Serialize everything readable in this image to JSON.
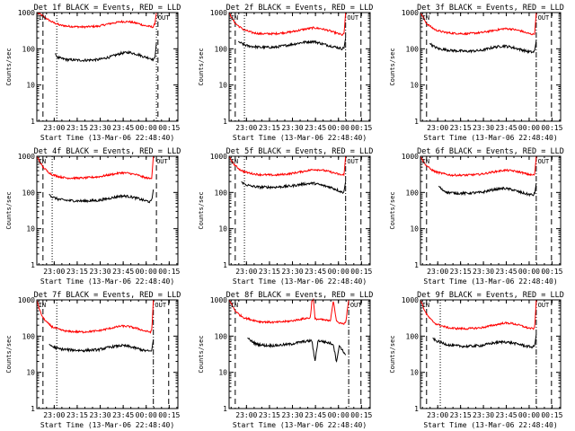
{
  "common": {
    "ylabel": "Counts/sec",
    "xlabel": "Start Time (13-Mar-06 22:48:40)",
    "yticks": [
      "1",
      "10",
      "100",
      "1000"
    ],
    "xticks": [
      "23:00",
      "23:15",
      "23:30",
      "23:45",
      "00:00",
      "00:15"
    ],
    "in_label": "IN",
    "out_label": "OUT"
  },
  "colors": {
    "events": "#000000",
    "lld": "#ff0000",
    "axis": "#000000",
    "bg": "#ffffff"
  },
  "chart_data": [
    {
      "type": "line",
      "title": "Det 1f BLACK = Events, RED = LLD",
      "yscale": "log",
      "ylim": [
        1,
        1000
      ],
      "xlim_minutes_from_start": [
        0,
        92
      ],
      "series": [
        {
          "name": "Events",
          "color": "black",
          "start": 12,
          "end": 78,
          "x": [
            12,
            13,
            15,
            20,
            30,
            40,
            48,
            55,
            60,
            66,
            70,
            74,
            76,
            77,
            78
          ],
          "y": [
            75,
            60,
            55,
            50,
            48,
            50,
            60,
            75,
            80,
            70,
            60,
            55,
            50,
            55,
            150
          ]
        },
        {
          "name": "LLD",
          "color": "red",
          "start": 0,
          "end": 78,
          "x": [
            0,
            2,
            4,
            7,
            10,
            15,
            20,
            30,
            40,
            48,
            55,
            60,
            66,
            70,
            74,
            76,
            77,
            78
          ],
          "y": [
            1000,
            900,
            800,
            650,
            550,
            450,
            420,
            400,
            420,
            500,
            560,
            560,
            500,
            440,
            410,
            400,
            500,
            1000
          ]
        }
      ],
      "markers": {
        "dashed": [
          4,
          79
        ],
        "dotted": [
          13,
          78
        ],
        "dashdot": [],
        "in_x": 1,
        "out_x": 79
      }
    },
    {
      "type": "line",
      "title": "Det 2f BLACK = Events, RED = LLD",
      "yscale": "log",
      "ylim": [
        1,
        1000
      ],
      "xlim_minutes_from_start": [
        0,
        92
      ],
      "series": [
        {
          "name": "Events",
          "color": "black",
          "start": 6,
          "end": 76,
          "x": [
            6,
            8,
            12,
            20,
            30,
            40,
            48,
            55,
            60,
            66,
            70,
            74,
            75,
            76
          ],
          "y": [
            160,
            140,
            120,
            110,
            110,
            130,
            150,
            160,
            140,
            120,
            110,
            100,
            110,
            200
          ]
        },
        {
          "name": "LLD",
          "color": "red",
          "start": 0,
          "end": 76,
          "x": [
            0,
            2,
            4,
            7,
            10,
            15,
            20,
            30,
            40,
            48,
            55,
            60,
            66,
            70,
            74,
            75,
            76
          ],
          "y": [
            1000,
            700,
            500,
            400,
            330,
            280,
            260,
            260,
            290,
            340,
            380,
            360,
            310,
            270,
            240,
            260,
            1000
          ]
        }
      ],
      "markers": {
        "dashed": [
          4,
          86
        ],
        "dotted": [
          10
        ],
        "dashdot": [
          76
        ],
        "in_x": 1,
        "out_x": 77
      }
    },
    {
      "type": "line",
      "title": "Det 3f BLACK = Events, RED = LLD",
      "yscale": "log",
      "ylim": [
        1,
        1000
      ],
      "xlim_minutes_from_start": [
        0,
        92
      ],
      "series": [
        {
          "name": "Events",
          "color": "black",
          "start": 6,
          "end": 76,
          "x": [
            6,
            8,
            12,
            20,
            30,
            40,
            48,
            55,
            60,
            66,
            70,
            74,
            75,
            76
          ],
          "y": [
            140,
            120,
            100,
            90,
            85,
            90,
            110,
            120,
            110,
            95,
            85,
            80,
            90,
            170
          ]
        },
        {
          "name": "LLD",
          "color": "red",
          "start": 0,
          "end": 76,
          "x": [
            0,
            2,
            4,
            7,
            10,
            15,
            20,
            30,
            40,
            48,
            55,
            60,
            66,
            70,
            74,
            75,
            76
          ],
          "y": [
            1000,
            700,
            500,
            400,
            330,
            290,
            270,
            260,
            280,
            320,
            360,
            350,
            310,
            270,
            250,
            270,
            1000
          ]
        }
      ],
      "markers": {
        "dashed": [
          4,
          86
        ],
        "dotted": [],
        "dashdot": [
          76
        ],
        "in_x": 1,
        "out_x": 77
      }
    },
    {
      "type": "line",
      "title": "Det 4f BLACK = Events, RED = LLD",
      "yscale": "log",
      "ylim": [
        1,
        1000
      ],
      "xlim_minutes_from_start": [
        0,
        92
      ],
      "series": [
        {
          "name": "Events",
          "color": "black",
          "start": 8,
          "end": 76,
          "x": [
            8,
            10,
            14,
            20,
            30,
            40,
            48,
            55,
            60,
            66,
            70,
            74,
            75,
            76
          ],
          "y": [
            90,
            75,
            65,
            60,
            58,
            60,
            70,
            80,
            78,
            68,
            60,
            55,
            60,
            120
          ]
        },
        {
          "name": "LLD",
          "color": "red",
          "start": 0,
          "end": 76,
          "x": [
            0,
            2,
            4,
            7,
            10,
            15,
            20,
            30,
            40,
            48,
            55,
            60,
            66,
            70,
            74,
            75,
            76
          ],
          "y": [
            1000,
            700,
            500,
            380,
            310,
            270,
            250,
            250,
            270,
            310,
            350,
            340,
            300,
            260,
            240,
            260,
            1000
          ]
        }
      ],
      "markers": {
        "dashed": [
          4,
          78
        ],
        "dotted": [
          10
        ],
        "dashdot": [],
        "in_x": 1,
        "out_x": 78
      }
    },
    {
      "type": "line",
      "title": "Det 5f BLACK = Events, RED = LLD",
      "yscale": "log",
      "ylim": [
        1,
        1000
      ],
      "xlim_minutes_from_start": [
        0,
        92
      ],
      "series": [
        {
          "name": "Events",
          "color": "black",
          "start": 8,
          "end": 76,
          "x": [
            8,
            10,
            14,
            20,
            30,
            40,
            48,
            55,
            60,
            66,
            70,
            74,
            75,
            76
          ],
          "y": [
            200,
            170,
            150,
            140,
            140,
            150,
            170,
            180,
            160,
            140,
            120,
            100,
            110,
            200
          ]
        },
        {
          "name": "LLD",
          "color": "red",
          "start": 0,
          "end": 76,
          "x": [
            0,
            2,
            4,
            7,
            10,
            15,
            20,
            30,
            40,
            48,
            55,
            60,
            66,
            70,
            74,
            75,
            76
          ],
          "y": [
            1000,
            700,
            550,
            430,
            370,
            330,
            310,
            300,
            330,
            380,
            430,
            420,
            370,
            330,
            300,
            320,
            1000
          ]
        }
      ],
      "markers": {
        "dashed": [
          4,
          86
        ],
        "dotted": [
          10
        ],
        "dashdot": [
          76
        ],
        "in_x": 1,
        "out_x": 77
      }
    },
    {
      "type": "line",
      "title": "Det 6f BLACK = Events, RED = LLD",
      "yscale": "log",
      "ylim": [
        1,
        1000
      ],
      "xlim_minutes_from_start": [
        0,
        92
      ],
      "series": [
        {
          "name": "Events",
          "color": "black",
          "start": 12,
          "end": 76,
          "x": [
            12,
            14,
            18,
            24,
            30,
            40,
            48,
            55,
            60,
            66,
            70,
            74,
            75,
            76
          ],
          "y": [
            150,
            120,
            100,
            95,
            95,
            100,
            120,
            130,
            120,
            100,
            90,
            85,
            95,
            180
          ]
        },
        {
          "name": "LLD",
          "color": "red",
          "start": 0,
          "end": 76,
          "x": [
            0,
            2,
            4,
            7,
            10,
            15,
            20,
            30,
            40,
            48,
            55,
            60,
            66,
            70,
            74,
            75,
            76
          ],
          "y": [
            1000,
            700,
            550,
            430,
            370,
            330,
            300,
            300,
            320,
            370,
            410,
            400,
            360,
            320,
            300,
            320,
            1000
          ]
        }
      ],
      "markers": {
        "dashed": [
          4,
          86
        ],
        "dotted": [],
        "dashdot": [
          76
        ],
        "in_x": 1,
        "out_x": 77
      }
    },
    {
      "type": "line",
      "title": "Det 7f BLACK = Events, RED = LLD",
      "yscale": "log",
      "ylim": [
        1,
        1000
      ],
      "xlim_minutes_from_start": [
        0,
        92
      ],
      "series": [
        {
          "name": "Events",
          "color": "black",
          "start": 8,
          "end": 76,
          "x": [
            8,
            10,
            14,
            20,
            30,
            40,
            48,
            55,
            60,
            66,
            70,
            74,
            75,
            76
          ],
          "y": [
            60,
            52,
            45,
            42,
            40,
            42,
            50,
            55,
            52,
            45,
            40,
            38,
            42,
            80
          ]
        },
        {
          "name": "LLD",
          "color": "red",
          "start": 0,
          "end": 76,
          "x": [
            0,
            2,
            4,
            7,
            10,
            15,
            20,
            30,
            40,
            48,
            55,
            60,
            66,
            70,
            74,
            75,
            76
          ],
          "y": [
            1000,
            500,
            320,
            230,
            180,
            150,
            135,
            130,
            140,
            165,
            190,
            185,
            160,
            140,
            130,
            140,
            1000
          ]
        }
      ],
      "markers": {
        "dashed": [
          4,
          86
        ],
        "dotted": [
          13
        ],
        "dashdot": [
          76
        ],
        "in_x": 1,
        "out_x": 77
      }
    },
    {
      "type": "line",
      "title": "Det 8f BLACK = Events, RED = LLD",
      "yscale": "log",
      "ylim": [
        1,
        1000
      ],
      "xlim_minutes_from_start": [
        0,
        92
      ],
      "series": [
        {
          "name": "Events",
          "color": "black",
          "start": 12,
          "end": 76,
          "x": [
            12,
            14,
            18,
            24,
            30,
            40,
            48,
            54,
            56,
            58,
            62,
            68,
            70,
            72,
            76
          ],
          "y": [
            90,
            75,
            60,
            55,
            55,
            60,
            70,
            75,
            20,
            75,
            70,
            60,
            20,
            55,
            30
          ]
        },
        {
          "name": "LLD",
          "color": "red",
          "start": 0,
          "end": 78,
          "x": [
            0,
            2,
            4,
            7,
            10,
            15,
            20,
            30,
            40,
            48,
            53,
            54,
            55,
            56,
            62,
            66,
            68,
            70,
            74,
            76,
            78
          ],
          "y": [
            1000,
            700,
            500,
            380,
            320,
            280,
            250,
            240,
            260,
            300,
            320,
            1000,
            1000,
            300,
            280,
            260,
            1000,
            250,
            220,
            230,
            1000
          ]
        }
      ],
      "markers": {
        "dashed": [
          4,
          86
        ],
        "dotted": [],
        "dashdot": [
          78
        ],
        "in_x": 1,
        "out_x": 79
      }
    },
    {
      "type": "line",
      "title": "Det 9f BLACK = Events, RED = LLD",
      "yscale": "log",
      "ylim": [
        1,
        1000
      ],
      "xlim_minutes_from_start": [
        0,
        92
      ],
      "series": [
        {
          "name": "Events",
          "color": "black",
          "start": 8,
          "end": 76,
          "x": [
            8,
            10,
            14,
            20,
            30,
            40,
            48,
            55,
            60,
            66,
            70,
            74,
            75,
            76
          ],
          "y": [
            90,
            75,
            65,
            55,
            52,
            55,
            65,
            70,
            65,
            58,
            52,
            50,
            55,
            110
          ]
        },
        {
          "name": "LLD",
          "color": "red",
          "start": 0,
          "end": 76,
          "x": [
            0,
            2,
            4,
            7,
            10,
            15,
            20,
            30,
            40,
            48,
            55,
            60,
            66,
            70,
            74,
            75,
            76
          ],
          "y": [
            1000,
            600,
            400,
            280,
            220,
            185,
            165,
            160,
            170,
            200,
            230,
            225,
            195,
            170,
            160,
            170,
            1000
          ]
        }
      ],
      "markers": {
        "dashed": [
          4,
          86
        ],
        "dotted": [
          13
        ],
        "dashdot": [
          76
        ],
        "in_x": 1,
        "out_x": 77
      }
    }
  ]
}
